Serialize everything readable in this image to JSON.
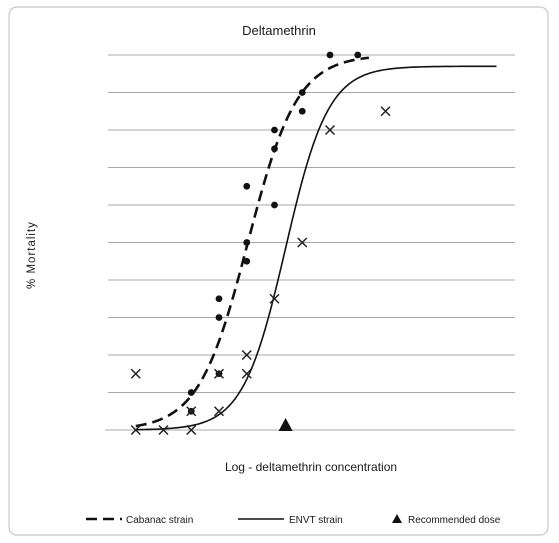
{
  "chart_data": {
    "type": "scatter",
    "title": "Deltamethrin",
    "xlabel": "Log - deltamethrin concentration",
    "ylabel": "% Mortality",
    "xlim": [
      0,
      10
    ],
    "ylim": [
      0,
      100
    ],
    "grid": true,
    "legend_position": "bottom",
    "series": [
      {
        "name": "Cabanac strain",
        "marker": "dot",
        "line": "dashed",
        "points": [
          {
            "x": 1.5,
            "y": 5
          },
          {
            "x": 1.5,
            "y": 10
          },
          {
            "x": 2.0,
            "y": 15
          },
          {
            "x": 2.0,
            "y": 30
          },
          {
            "x": 2.0,
            "y": 35
          },
          {
            "x": 2.5,
            "y": 45
          },
          {
            "x": 2.5,
            "y": 50
          },
          {
            "x": 2.5,
            "y": 65
          },
          {
            "x": 3.0,
            "y": 60
          },
          {
            "x": 3.0,
            "y": 75
          },
          {
            "x": 3.0,
            "y": 80
          },
          {
            "x": 3.5,
            "y": 85
          },
          {
            "x": 3.5,
            "y": 90
          },
          {
            "x": 4.0,
            "y": 100
          },
          {
            "x": 4.5,
            "y": 100
          }
        ],
        "curve": {
          "x0": 2.52,
          "k": 2.25,
          "x_start": 0.5,
          "x_end": 4.7
        }
      },
      {
        "name": "ENVT strain",
        "marker": "cross",
        "line": "solid",
        "points": [
          {
            "x": 0.5,
            "y": 15
          },
          {
            "x": 0.5,
            "y": 0
          },
          {
            "x": 1.0,
            "y": 0
          },
          {
            "x": 1.5,
            "y": 0
          },
          {
            "x": 1.5,
            "y": 5
          },
          {
            "x": 2.0,
            "y": 5
          },
          {
            "x": 2.0,
            "y": 15
          },
          {
            "x": 2.5,
            "y": 15
          },
          {
            "x": 2.5,
            "y": 20
          },
          {
            "x": 3.0,
            "y": 35
          },
          {
            "x": 3.5,
            "y": 50
          },
          {
            "x": 4.0,
            "y": 80
          },
          {
            "x": 5.0,
            "y": 85
          }
        ],
        "curve": {
          "x0": 3.2,
          "k": 2.6,
          "ymax": 97,
          "x_start": 0.5,
          "x_end": 7.0
        }
      }
    ],
    "markers": [
      {
        "name": "Recommended dose",
        "shape": "triangle",
        "x": 3.2,
        "y": 0
      }
    ]
  },
  "legend": {
    "cabanac_label": "Cabanac strain",
    "envt_label": "ENVT strain",
    "dose_label": "Recommended dose"
  }
}
